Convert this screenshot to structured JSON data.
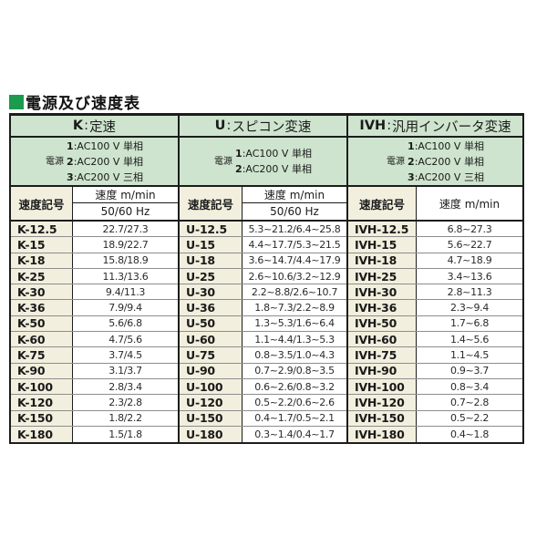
{
  "page_title": {
    "text": "電源及び速度表"
  },
  "colors": {
    "title_square_green": "#1b9b4d",
    "header_band_green": "#cee4ce",
    "label_cell_cream": "#f2efde",
    "border_black": "#1c1c1c",
    "row_separator_gray": "#8d8d8d"
  },
  "table": {
    "colon": ":",
    "groups": [
      {
        "code": "K",
        "name": "定速",
        "power_label": "電源",
        "power_lines": [
          {
            "num": "1",
            "text": "AC100 V 単相"
          },
          {
            "num": "2",
            "text": "AC200 V 単相"
          },
          {
            "num": "3",
            "text": "AC200 V 三相"
          }
        ],
        "col_symbol": "速度記号",
        "col_speed": "速度 m/min",
        "col_hz": "50/60 Hz",
        "rows": [
          {
            "symbol": "K-12.5",
            "value": "22.7/27.3"
          },
          {
            "symbol": "K-15",
            "value": "18.9/22.7"
          },
          {
            "symbol": "K-18",
            "value": "15.8/18.9"
          },
          {
            "symbol": "K-25",
            "value": "11.3/13.6"
          },
          {
            "symbol": "K-30",
            "value": "9.4/11.3"
          },
          {
            "symbol": "K-36",
            "value": "7.9/9.4"
          },
          {
            "symbol": "K-50",
            "value": "5.6/6.8"
          },
          {
            "symbol": "K-60",
            "value": "4.7/5.6"
          },
          {
            "symbol": "K-75",
            "value": "3.7/4.5"
          },
          {
            "symbol": "K-90",
            "value": "3.1/3.7"
          },
          {
            "symbol": "K-100",
            "value": "2.8/3.4"
          },
          {
            "symbol": "K-120",
            "value": "2.3/2.8"
          },
          {
            "symbol": "K-150",
            "value": "1.8/2.2"
          },
          {
            "symbol": "K-180",
            "value": "1.5/1.8"
          }
        ]
      },
      {
        "code": "U",
        "name": "スピコン変速",
        "power_label": "電源",
        "power_lines": [
          {
            "num": "1",
            "text": "AC100 V 単相"
          },
          {
            "num": "2",
            "text": "AC200 V 単相"
          }
        ],
        "col_symbol": "速度記号",
        "col_speed": "速度 m/min",
        "col_hz": "50/60 Hz",
        "rows": [
          {
            "symbol": "U-12.5",
            "value": "5.3~21.2/6.4~25.8"
          },
          {
            "symbol": "U-15",
            "value": "4.4~17.7/5.3~21.5"
          },
          {
            "symbol": "U-18",
            "value": "3.6~14.7/4.4~17.9"
          },
          {
            "symbol": "U-25",
            "value": "2.6~10.6/3.2~12.9"
          },
          {
            "symbol": "U-30",
            "value": "2.2~8.8/2.6~10.7"
          },
          {
            "symbol": "U-36",
            "value": "1.8~7.3/2.2~8.9"
          },
          {
            "symbol": "U-50",
            "value": "1.3~5.3/1.6~6.4"
          },
          {
            "symbol": "U-60",
            "value": "1.1~4.4/1.3~5.3"
          },
          {
            "symbol": "U-75",
            "value": "0.8~3.5/1.0~4.3"
          },
          {
            "symbol": "U-90",
            "value": "0.7~2.9/0.8~3.5"
          },
          {
            "symbol": "U-100",
            "value": "0.6~2.6/0.8~3.2"
          },
          {
            "symbol": "U-120",
            "value": "0.5~2.2/0.6~2.6"
          },
          {
            "symbol": "U-150",
            "value": "0.4~1.7/0.5~2.1"
          },
          {
            "symbol": "U-180",
            "value": "0.3~1.4/0.4~1.7"
          }
        ]
      },
      {
        "code": "IVH",
        "name": "汎用インバータ変速",
        "power_label": "電源",
        "power_lines": [
          {
            "num": "1",
            "text": "AC100 V 単相"
          },
          {
            "num": "2",
            "text": "AC200 V 単相"
          },
          {
            "num": "3",
            "text": "AC200 V 三相"
          }
        ],
        "col_symbol": "速度記号",
        "col_speed": "速度 m/min",
        "rows": [
          {
            "symbol": "IVH-12.5",
            "value": "6.8~27.3"
          },
          {
            "symbol": "IVH-15",
            "value": "5.6~22.7"
          },
          {
            "symbol": "IVH-18",
            "value": "4.7~18.9"
          },
          {
            "symbol": "IVH-25",
            "value": "3.4~13.6"
          },
          {
            "symbol": "IVH-30",
            "value": "2.8~11.3"
          },
          {
            "symbol": "IVH-36",
            "value": "2.3~9.4"
          },
          {
            "symbol": "IVH-50",
            "value": "1.7~6.8"
          },
          {
            "symbol": "IVH-60",
            "value": "1.4~5.6"
          },
          {
            "symbol": "IVH-75",
            "value": "1.1~4.5"
          },
          {
            "symbol": "IVH-90",
            "value": "0.9~3.7"
          },
          {
            "symbol": "IVH-100",
            "value": "0.8~3.4"
          },
          {
            "symbol": "IVH-120",
            "value": "0.7~2.8"
          },
          {
            "symbol": "IVH-150",
            "value": "0.5~2.2"
          },
          {
            "symbol": "IVH-180",
            "value": "0.4~1.8"
          }
        ]
      }
    ]
  }
}
